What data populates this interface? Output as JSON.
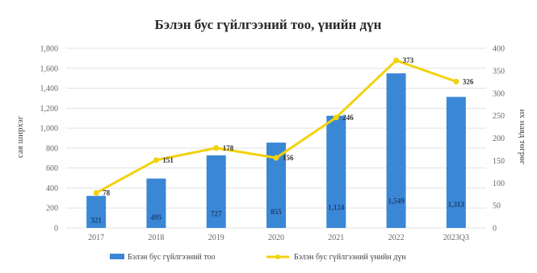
{
  "chart_data": {
    "type": "bar",
    "title": "Бэлэн бус гүйлгээний тоо, үнийн дүн",
    "categories": [
      "2017",
      "2018",
      "2019",
      "2020",
      "2021",
      "2022",
      "2023Q3"
    ],
    "series": [
      {
        "name": "Бэлэн бус гүйлгээний тоо",
        "type": "bar",
        "axis": "left",
        "values": [
          321,
          495,
          727,
          855,
          1124,
          1549,
          1313
        ],
        "labels": [
          "321",
          "495",
          "727",
          "855",
          "1,124",
          "1,549",
          "1,313"
        ],
        "color": "#3a87d6"
      },
      {
        "name": "Бэлэн бус гүйлгээний үнийн дүн",
        "type": "line",
        "axis": "right",
        "values": [
          78,
          151,
          178,
          156,
          246,
          373,
          326
        ],
        "labels": [
          "78",
          "151",
          "178",
          "156",
          "246",
          "373",
          "326"
        ],
        "color": "#f2d20c"
      }
    ],
    "ylabel": "сая ширхэг",
    "y2label": "их наяд төгрөг",
    "ylim": [
      0,
      1800
    ],
    "y2lim": [
      0,
      400
    ],
    "yticks": [
      "0",
      "200",
      "400",
      "600",
      "800",
      "1,000",
      "1,200",
      "1,400",
      "1,600",
      "1,800"
    ],
    "y2ticks": [
      "0",
      "50",
      "100",
      "150",
      "200",
      "250",
      "300",
      "350",
      "400"
    ],
    "grid": true,
    "legend": "bottom"
  }
}
